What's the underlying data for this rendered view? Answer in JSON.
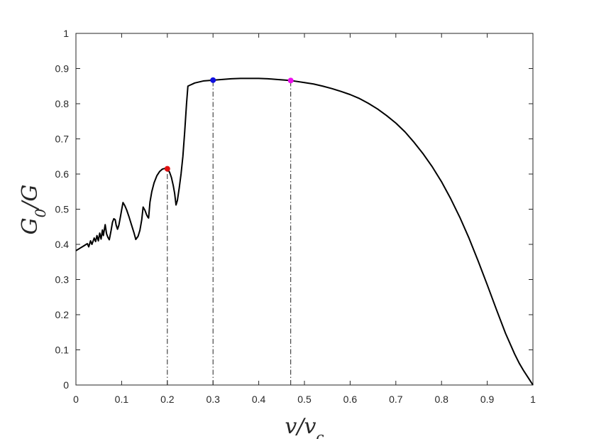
{
  "chart_data": {
    "type": "line",
    "title": "",
    "xlabel": "v/v_c",
    "ylabel": "G_0/G",
    "xlim": [
      0,
      1
    ],
    "ylim": [
      0,
      1
    ],
    "grid": false,
    "xticks": [
      0,
      0.1,
      0.2,
      0.3,
      0.4,
      0.5,
      0.6,
      0.7,
      0.8,
      0.9,
      1
    ],
    "yticks": [
      0,
      0.1,
      0.2,
      0.3,
      0.4,
      0.5,
      0.6,
      0.7,
      0.8,
      0.9,
      1
    ],
    "xtick_labels": [
      "0",
      "0.1",
      "0.2",
      "0.3",
      "0.4",
      "0.5",
      "0.6",
      "0.7",
      "0.8",
      "0.9",
      "1"
    ],
    "ytick_labels": [
      "0",
      "0.1",
      "0.2",
      "0.3",
      "0.4",
      "0.5",
      "0.6",
      "0.7",
      "0.8",
      "0.9",
      "1"
    ],
    "series": [
      {
        "color": "#000000",
        "points": [
          [
            0.0,
            0.382
          ],
          [
            0.005,
            0.386
          ],
          [
            0.01,
            0.39
          ],
          [
            0.015,
            0.394
          ],
          [
            0.02,
            0.398
          ],
          [
            0.025,
            0.402
          ],
          [
            0.028,
            0.393
          ],
          [
            0.032,
            0.41
          ],
          [
            0.035,
            0.4
          ],
          [
            0.04,
            0.418
          ],
          [
            0.043,
            0.408
          ],
          [
            0.046,
            0.425
          ],
          [
            0.049,
            0.41
          ],
          [
            0.052,
            0.432
          ],
          [
            0.055,
            0.415
          ],
          [
            0.058,
            0.441
          ],
          [
            0.06,
            0.425
          ],
          [
            0.064,
            0.456
          ],
          [
            0.067,
            0.43
          ],
          [
            0.07,
            0.42
          ],
          [
            0.073,
            0.413
          ],
          [
            0.077,
            0.44
          ],
          [
            0.08,
            0.463
          ],
          [
            0.083,
            0.473
          ],
          [
            0.086,
            0.47
          ],
          [
            0.088,
            0.455
          ],
          [
            0.091,
            0.443
          ],
          [
            0.094,
            0.455
          ],
          [
            0.097,
            0.476
          ],
          [
            0.1,
            0.498
          ],
          [
            0.103,
            0.519
          ],
          [
            0.107,
            0.51
          ],
          [
            0.111,
            0.498
          ],
          [
            0.116,
            0.479
          ],
          [
            0.121,
            0.458
          ],
          [
            0.127,
            0.433
          ],
          [
            0.131,
            0.414
          ],
          [
            0.136,
            0.423
          ],
          [
            0.14,
            0.44
          ],
          [
            0.144,
            0.47
          ],
          [
            0.147,
            0.506
          ],
          [
            0.151,
            0.497
          ],
          [
            0.155,
            0.483
          ],
          [
            0.158,
            0.476
          ],
          [
            0.159,
            0.475
          ],
          [
            0.162,
            0.52
          ],
          [
            0.166,
            0.55
          ],
          [
            0.171,
            0.575
          ],
          [
            0.177,
            0.595
          ],
          [
            0.183,
            0.607
          ],
          [
            0.189,
            0.614
          ],
          [
            0.195,
            0.616
          ],
          [
            0.2,
            0.615
          ],
          [
            0.205,
            0.605
          ],
          [
            0.209,
            0.59
          ],
          [
            0.213,
            0.567
          ],
          [
            0.216,
            0.545
          ],
          [
            0.219,
            0.512
          ],
          [
            0.222,
            0.525
          ],
          [
            0.226,
            0.56
          ],
          [
            0.23,
            0.6
          ],
          [
            0.234,
            0.65
          ],
          [
            0.238,
            0.72
          ],
          [
            0.242,
            0.8
          ],
          [
            0.245,
            0.85
          ],
          [
            0.25,
            0.853
          ],
          [
            0.255,
            0.856
          ],
          [
            0.26,
            0.859
          ],
          [
            0.27,
            0.862
          ],
          [
            0.28,
            0.865
          ],
          [
            0.3,
            0.867
          ],
          [
            0.32,
            0.869
          ],
          [
            0.34,
            0.871
          ],
          [
            0.36,
            0.872
          ],
          [
            0.38,
            0.872
          ],
          [
            0.4,
            0.872
          ],
          [
            0.42,
            0.871
          ],
          [
            0.44,
            0.869
          ],
          [
            0.46,
            0.867
          ],
          [
            0.47,
            0.866
          ],
          [
            0.48,
            0.864
          ],
          [
            0.5,
            0.86
          ],
          [
            0.52,
            0.856
          ],
          [
            0.54,
            0.85
          ],
          [
            0.56,
            0.843
          ],
          [
            0.58,
            0.835
          ],
          [
            0.6,
            0.826
          ],
          [
            0.62,
            0.815
          ],
          [
            0.64,
            0.801
          ],
          [
            0.66,
            0.785
          ],
          [
            0.68,
            0.766
          ],
          [
            0.7,
            0.745
          ],
          [
            0.72,
            0.72
          ],
          [
            0.74,
            0.69
          ],
          [
            0.76,
            0.657
          ],
          [
            0.78,
            0.62
          ],
          [
            0.8,
            0.578
          ],
          [
            0.82,
            0.53
          ],
          [
            0.84,
            0.477
          ],
          [
            0.86,
            0.418
          ],
          [
            0.88,
            0.353
          ],
          [
            0.9,
            0.285
          ],
          [
            0.92,
            0.215
          ],
          [
            0.94,
            0.147
          ],
          [
            0.96,
            0.088
          ],
          [
            0.97,
            0.062
          ],
          [
            0.98,
            0.04
          ],
          [
            0.99,
            0.02
          ],
          [
            1.0,
            0.0
          ]
        ]
      }
    ],
    "markers": [
      {
        "x": 0.2,
        "y": 0.615,
        "color": "#e01010",
        "name": "red-marker"
      },
      {
        "x": 0.3,
        "y": 0.867,
        "color": "#1010e0",
        "name": "blue-marker"
      },
      {
        "x": 0.47,
        "y": 0.866,
        "color": "#ee10ee",
        "name": "magenta-marker"
      }
    ],
    "dash_dot_lines": [
      {
        "x": 0.2,
        "y_top": 0.615
      },
      {
        "x": 0.3,
        "y_top": 0.867
      },
      {
        "x": 0.47,
        "y_top": 0.866
      }
    ]
  }
}
